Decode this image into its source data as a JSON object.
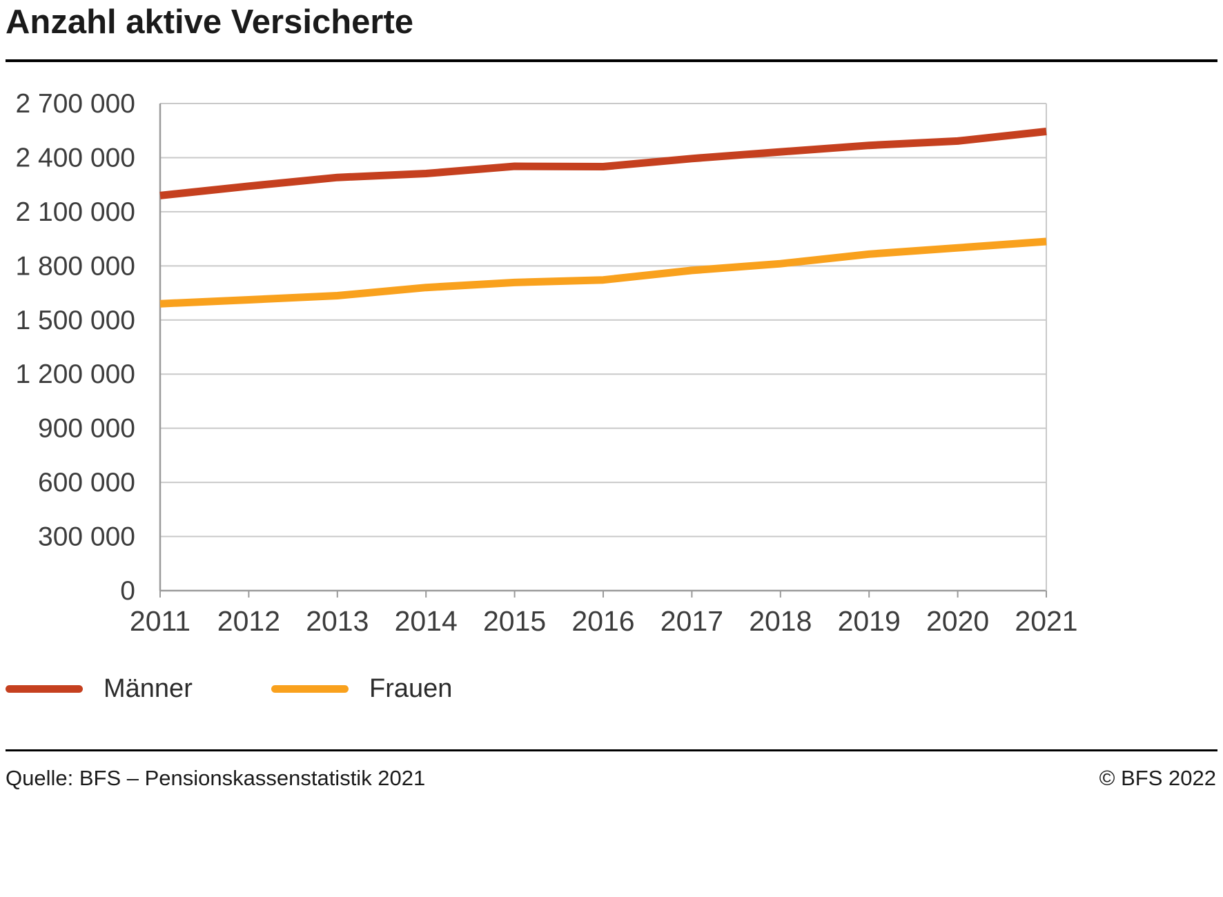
{
  "page": {
    "title": "Anzahl aktive Versicherte",
    "footer": {
      "source": "Quelle: BFS – Pensionskassenstatistik 2021",
      "copyright": "© BFS 2022"
    }
  },
  "chart_data": {
    "type": "line",
    "title": "Anzahl aktive Versicherte",
    "x": [
      2011,
      2012,
      2013,
      2014,
      2015,
      2016,
      2017,
      2018,
      2019,
      2020,
      2021
    ],
    "series": [
      {
        "name": "Männer",
        "color": "#c5401f",
        "values": [
          2190000,
          2242000,
          2290000,
          2312000,
          2352000,
          2350000,
          2395000,
          2432000,
          2468000,
          2492000,
          2545000
        ]
      },
      {
        "name": "Frauen",
        "color": "#f9a11d",
        "values": [
          1590000,
          1612000,
          1635000,
          1680000,
          1708000,
          1722000,
          1775000,
          1812000,
          1865000,
          1900000,
          1935000
        ]
      }
    ],
    "xlabel": "",
    "ylabel": "",
    "ylim": [
      0,
      2700000
    ],
    "ytick_step": 300000,
    "ytick_labels": [
      "0",
      "300 000",
      "600 000",
      "900 000",
      "1 200 000",
      "1 500 000",
      "1 800 000",
      "2 100 000",
      "2 400 000",
      "2 700 000"
    ],
    "grid": true,
    "legend_position": "bottom",
    "colors": {
      "grid_line": "#c9c9c9",
      "axis_line": "#9a9a9a",
      "tick_label": "#3c3c3c"
    }
  }
}
